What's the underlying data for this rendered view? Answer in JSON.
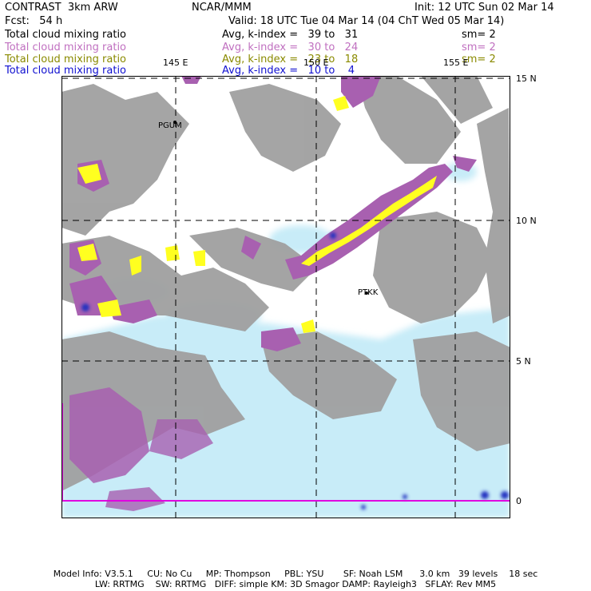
{
  "header": {
    "model": "CONTRAST  3km ARW",
    "org": "NCAR/MMM",
    "init": "Init: 12 UTC Sun 02 Mar 14",
    "fcst": "Fcst:   54 h",
    "valid": "Valid: 18 UTC Tue 04 Mar 14 (04 ChT Wed 05 Mar 14)"
  },
  "legend": [
    {
      "field": "Total cloud mixing ratio",
      "range": "Avg, k-index =   39 to   31",
      "sm": "sm= 2",
      "color": "#000000"
    },
    {
      "field": "Total cloud mixing ratio",
      "range": "Avg, k-index =   30 to   24",
      "sm": "sm= 2",
      "color": "#c070c0"
    },
    {
      "field": "Total cloud mixing ratio",
      "range": "Avg, k-index =   23 to   18",
      "sm": "sm= 2",
      "color": "#8a8a00"
    },
    {
      "field": "Total cloud mixing ratio",
      "range": "Avg, k-index =   10 to    4",
      "sm": "",
      "color": "#1010d0"
    }
  ],
  "map": {
    "lon_labels": [
      "145 E",
      "150 E",
      "155 E"
    ],
    "lat_labels": [
      "15 N",
      "10 N",
      "5 N",
      "0"
    ],
    "stations": [
      "PGUM",
      "PTKK"
    ],
    "colors": {
      "high_cloud": "#a0a0a0",
      "mid_cloud": "#a860b0",
      "low_cloud": "#ffff20",
      "shallow_cloud": "#c8ecf8",
      "deep_blue": "#2030c0",
      "equator_line": "#e000e0"
    }
  },
  "footer": {
    "line1": "Model Info: V3.5.1     CU: No Cu     MP: Thompson     PBL: YSU       SF: Noah LSM      3.0 km   39 levels    18 sec",
    "line2": "LW: RRTMG    SW: RRTMG   DIFF: simple KM: 3D Smagor DAMP: Rayleigh3   SFLAY: Rev MM5"
  }
}
